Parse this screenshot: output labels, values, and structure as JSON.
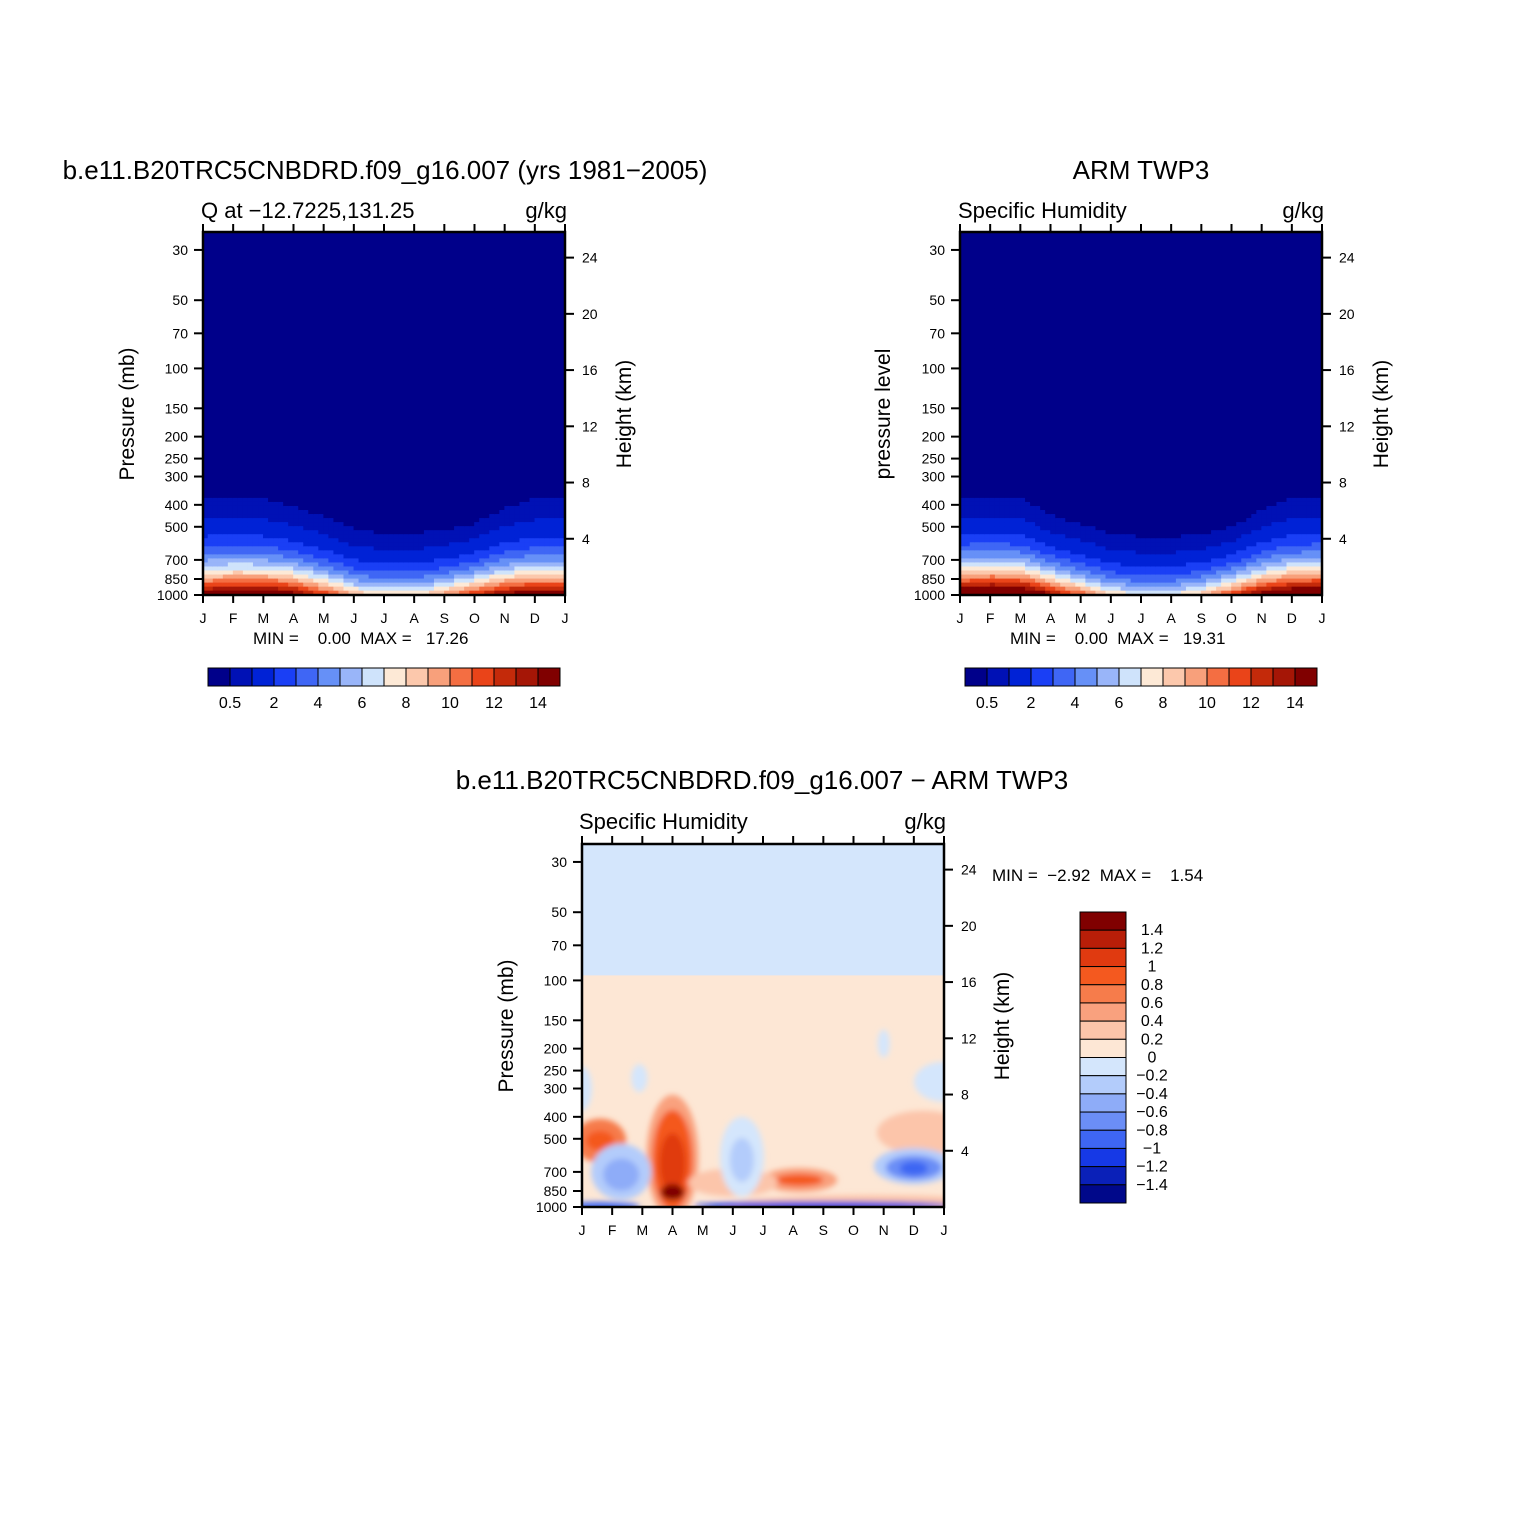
{
  "chart_data": [
    {
      "type": "heatmap",
      "title": "b.e11.B20TRC5CNBDRD.f09_g16.007 (yrs 1981-2005)",
      "subtitle_left": "Q at -12.7225,131.25",
      "subtitle_right": "g/kg",
      "ylabel": "Pressure (mb)",
      "y2label": "Height (km)",
      "x_ticks": [
        "J",
        "F",
        "M",
        "A",
        "M",
        "J",
        "J",
        "A",
        "S",
        "O",
        "N",
        "D",
        "J"
      ],
      "y_ticks": [
        "30",
        "50",
        "70",
        "100",
        "150",
        "200",
        "250",
        "300",
        "400",
        "500",
        "700",
        "850",
        "1000"
      ],
      "y2_ticks": [
        "24",
        "20",
        "16",
        "12",
        "8",
        "4"
      ],
      "ylim": [
        1000,
        25
      ],
      "y_scale": "log",
      "min_text": "MIN =    0.00  MAX =   17.26",
      "min": 0.0,
      "max": 17.26,
      "colorbar_labels": [
        "0.5",
        "2",
        "4",
        "6",
        "8",
        "10",
        "12",
        "14"
      ],
      "colorbar_levels": [
        0.5,
        1,
        2,
        3,
        4,
        5,
        6,
        7,
        8,
        9,
        10,
        11,
        12,
        13,
        14
      ],
      "colorbar_colors": [
        "#00008a",
        "#0011b5",
        "#0022d6",
        "#1a3ff5",
        "#3f66f5",
        "#6690f7",
        "#99b5f9",
        "#cfe3fb",
        "#fde9d6",
        "#fcc8ac",
        "#f8a07b",
        "#f46e42",
        "#ea4419",
        "#c42a0a",
        "#a51606",
        "#800000"
      ],
      "humidity_profile": [
        {
          "month": "J",
          "tropopause_mb": 300,
          "surface_g_kg": 15.5
        },
        {
          "month": "F",
          "tropopause_mb": 300,
          "surface_g_kg": 16.5
        },
        {
          "month": "M",
          "tropopause_mb": 310,
          "surface_g_kg": 16.5
        },
        {
          "month": "A",
          "tropopause_mb": 340,
          "surface_g_kg": 15.0
        },
        {
          "month": "M",
          "tropopause_mb": 380,
          "surface_g_kg": 12.0
        },
        {
          "month": "J",
          "tropopause_mb": 440,
          "surface_g_kg": 9.0
        },
        {
          "month": "J",
          "tropopause_mb": 460,
          "surface_g_kg": 8.0
        },
        {
          "month": "A",
          "tropopause_mb": 460,
          "surface_g_kg": 8.0
        },
        {
          "month": "S",
          "tropopause_mb": 450,
          "surface_g_kg": 9.5
        },
        {
          "month": "O",
          "tropopause_mb": 420,
          "surface_g_kg": 12.0
        },
        {
          "month": "N",
          "tropopause_mb": 350,
          "surface_g_kg": 14.5
        },
        {
          "month": "D",
          "tropopause_mb": 310,
          "surface_g_kg": 15.5
        },
        {
          "month": "J",
          "tropopause_mb": 300,
          "surface_g_kg": 15.5
        }
      ]
    },
    {
      "type": "heatmap",
      "title": "ARM TWP3",
      "subtitle_left": "Specific Humidity",
      "subtitle_right": "g/kg",
      "ylabel": "pressure level",
      "y2label": "Height (km)",
      "x_ticks": [
        "J",
        "F",
        "M",
        "A",
        "M",
        "J",
        "J",
        "A",
        "S",
        "O",
        "N",
        "D",
        "J"
      ],
      "y_ticks": [
        "30",
        "50",
        "70",
        "100",
        "150",
        "200",
        "250",
        "300",
        "400",
        "500",
        "700",
        "850",
        "1000"
      ],
      "y2_ticks": [
        "24",
        "20",
        "16",
        "12",
        "8",
        "4"
      ],
      "ylim": [
        1000,
        25
      ],
      "y_scale": "log",
      "min_text": "MIN =    0.00  MAX =   19.31",
      "min": 0.0,
      "max": 19.31,
      "colorbar_labels": [
        "0.5",
        "2",
        "4",
        "6",
        "8",
        "10",
        "12",
        "14"
      ],
      "colorbar_levels": [
        0.5,
        1,
        2,
        3,
        4,
        5,
        6,
        7,
        8,
        9,
        10,
        11,
        12,
        13,
        14
      ],
      "colorbar_colors": [
        "#00008a",
        "#0011b5",
        "#0022d6",
        "#1a3ff5",
        "#3f66f5",
        "#6690f7",
        "#99b5f9",
        "#cfe3fb",
        "#fde9d6",
        "#fcc8ac",
        "#f8a07b",
        "#f46e42",
        "#ea4419",
        "#c42a0a",
        "#a51606",
        "#800000"
      ],
      "humidity_profile": [
        {
          "month": "J",
          "tropopause_mb": 300,
          "surface_g_kg": 17.0
        },
        {
          "month": "F",
          "tropopause_mb": 300,
          "surface_g_kg": 18.0
        },
        {
          "month": "M",
          "tropopause_mb": 310,
          "surface_g_kg": 17.5
        },
        {
          "month": "A",
          "tropopause_mb": 380,
          "surface_g_kg": 14.0
        },
        {
          "month": "M",
          "tropopause_mb": 420,
          "surface_g_kg": 11.0
        },
        {
          "month": "J",
          "tropopause_mb": 460,
          "surface_g_kg": 8.0
        },
        {
          "month": "J",
          "tropopause_mb": 480,
          "surface_g_kg": 7.0
        },
        {
          "month": "A",
          "tropopause_mb": 480,
          "surface_g_kg": 7.0
        },
        {
          "month": "S",
          "tropopause_mb": 470,
          "surface_g_kg": 8.5
        },
        {
          "month": "O",
          "tropopause_mb": 440,
          "surface_g_kg": 11.5
        },
        {
          "month": "N",
          "tropopause_mb": 360,
          "surface_g_kg": 15.0
        },
        {
          "month": "D",
          "tropopause_mb": 310,
          "surface_g_kg": 17.0
        },
        {
          "month": "J",
          "tropopause_mb": 300,
          "surface_g_kg": 17.5
        }
      ]
    },
    {
      "type": "heatmap",
      "title": "b.e11.B20TRC5CNBDRD.f09_g16.007 - ARM TWP3",
      "subtitle_left": "Specific Humidity",
      "subtitle_right": "g/kg",
      "ylabel": "Pressure (mb)",
      "y2label": "Height (km)",
      "x_ticks": [
        "J",
        "F",
        "M",
        "A",
        "M",
        "J",
        "J",
        "A",
        "S",
        "O",
        "N",
        "D",
        "J"
      ],
      "y_ticks": [
        "30",
        "50",
        "70",
        "100",
        "150",
        "200",
        "250",
        "300",
        "400",
        "500",
        "700",
        "850",
        "1000"
      ],
      "y2_ticks": [
        "24",
        "20",
        "16",
        "12",
        "8",
        "4"
      ],
      "ylim": [
        1000,
        25
      ],
      "y_scale": "log",
      "min_text": "MIN =  -2.92  MAX =    1.54",
      "min": -2.92,
      "max": 1.54,
      "colorbar_labels": [
        "1.4",
        "1.2",
        "1",
        "0.8",
        "0.6",
        "0.4",
        "0.2",
        "0",
        "-0.2",
        "-0.4",
        "-0.6",
        "-0.8",
        "-1",
        "-1.2",
        "-1.4"
      ],
      "colorbar_colors": [
        "#800000",
        "#b81e08",
        "#e03a10",
        "#f4591f",
        "#f67c4b",
        "#f9a17e",
        "#fcc5aa",
        "#fde7d5",
        "#d4e6fc",
        "#b3ccfb",
        "#8eacf8",
        "#6b8ef6",
        "#3e66f3",
        "#1639e6",
        "#0a20b8",
        "#00088a"
      ],
      "background_values": [
        {
          "region": "above 95 mb",
          "value_range": "-0.2 to 0"
        },
        {
          "region": "95 mb to 420 mb",
          "value_range": "0 to 0.2"
        }
      ],
      "anomalies": [
        {
          "month": "A",
          "pressure_mb": 620,
          "value": 1.0
        },
        {
          "month": "A",
          "pressure_mb": 860,
          "value": 1.4
        },
        {
          "month": "J",
          "pressure_mb": 510,
          "value": 0.8
        },
        {
          "month": "A",
          "pressure_mb": 740,
          "value": 0.8
        },
        {
          "month": "J",
          "pressure_mb": 640,
          "value": -0.4
        },
        {
          "month": "F",
          "pressure_mb": 730,
          "value": -0.6
        },
        {
          "month": "D",
          "pressure_mb": 680,
          "value": -1.0
        },
        {
          "month": "S",
          "pressure_mb": 990,
          "value": -1.4
        }
      ]
    }
  ]
}
